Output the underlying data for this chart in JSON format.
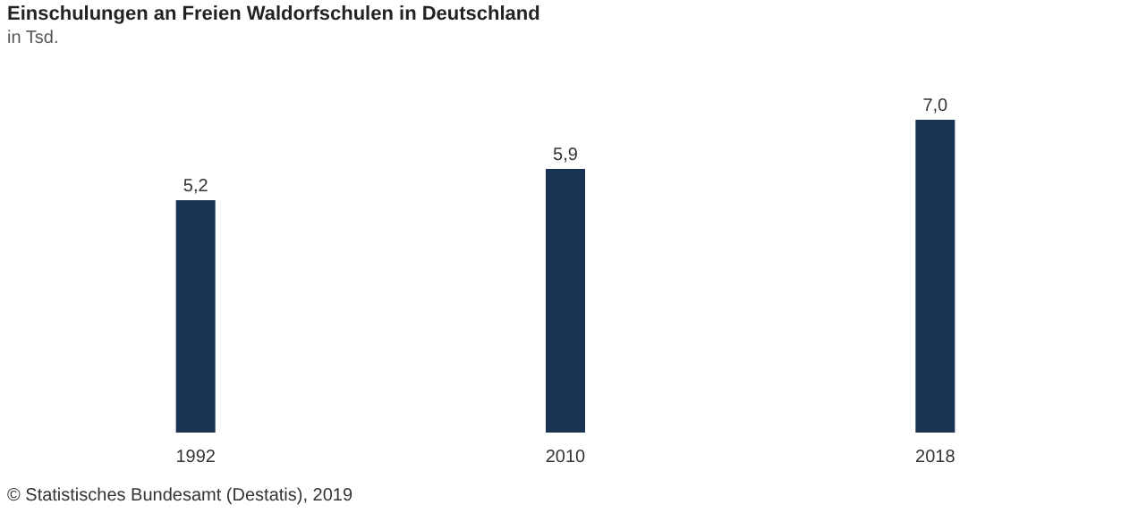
{
  "chart_data": {
    "type": "bar",
    "title": "Einschulungen an Freien Waldorfschulen in Deutschland",
    "subtitle": "in Tsd.",
    "categories": [
      "1992",
      "2010",
      "2018"
    ],
    "values": [
      5.2,
      5.9,
      7.0
    ],
    "value_labels": [
      "5,2",
      "5,9",
      "7,0"
    ],
    "color": "#1a3352",
    "grid": false,
    "annotations": [
      "© Statistisches Bundesamt (Destatis), 2019"
    ]
  }
}
